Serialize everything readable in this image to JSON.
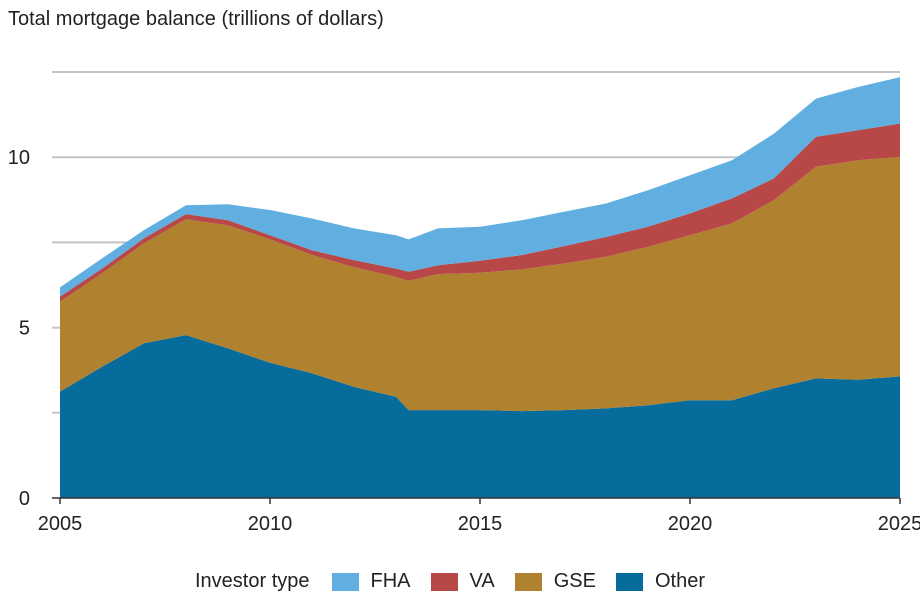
{
  "chart_data": {
    "type": "area",
    "stacked": true,
    "title": "Total mortgage balance (trillions of dollars)",
    "xlabel": "",
    "ylabel": "",
    "xlim": [
      2005,
      2025
    ],
    "ylim": [
      0,
      12.5
    ],
    "xticks": [
      2005,
      2010,
      2015,
      2020,
      2025
    ],
    "yticks": [
      0,
      5,
      10
    ],
    "gridlines": [
      0,
      2.5,
      5,
      7.5,
      10,
      12.5
    ],
    "grid": true,
    "legend": {
      "title": "Investor type",
      "placement": "bottom"
    },
    "x": [
      2005,
      2006,
      2007,
      2008,
      2009,
      2010,
      2011,
      2012,
      2013,
      2013.3,
      2014,
      2015,
      2016,
      2017,
      2018,
      2019,
      2020,
      2021,
      2022,
      2023,
      2024,
      2025
    ],
    "series": [
      {
        "name": "Other",
        "color": "#056C9C",
        "values": [
          3.12,
          3.85,
          4.54,
          4.78,
          4.39,
          3.97,
          3.66,
          3.26,
          2.97,
          2.58,
          2.58,
          2.58,
          2.55,
          2.58,
          2.63,
          2.72,
          2.87,
          2.87,
          3.22,
          3.51,
          3.47,
          3.57
        ]
      },
      {
        "name": "GSE",
        "color": "#B0812E",
        "values": [
          2.64,
          2.74,
          2.93,
          3.4,
          3.61,
          3.62,
          3.47,
          3.51,
          3.52,
          3.79,
          3.99,
          4.03,
          4.16,
          4.3,
          4.45,
          4.65,
          4.84,
          5.19,
          5.52,
          6.21,
          6.44,
          6.44
        ]
      },
      {
        "name": "VA",
        "color": "#B84848",
        "values": [
          0.15,
          0.14,
          0.15,
          0.15,
          0.15,
          0.12,
          0.14,
          0.21,
          0.24,
          0.27,
          0.26,
          0.35,
          0.42,
          0.51,
          0.58,
          0.59,
          0.64,
          0.73,
          0.64,
          0.88,
          0.88,
          0.98
        ]
      },
      {
        "name": "FHA",
        "color": "#61AEE0",
        "values": [
          0.27,
          0.3,
          0.24,
          0.26,
          0.47,
          0.74,
          0.93,
          0.93,
          0.98,
          0.95,
          1.08,
          1.0,
          1.02,
          1.01,
          0.98,
          1.07,
          1.12,
          1.12,
          1.31,
          1.12,
          1.27,
          1.36
        ]
      }
    ],
    "legend_order": [
      "FHA",
      "VA",
      "GSE",
      "Other"
    ]
  }
}
